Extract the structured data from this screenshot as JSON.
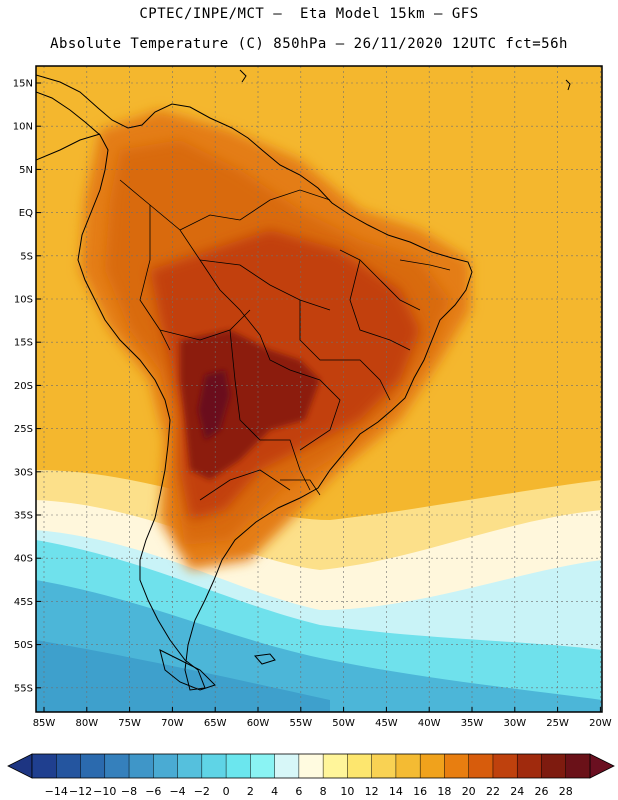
{
  "header": {
    "line1": "CPTEC/INPE/MCT –  Eta Model 15km – GFS",
    "line2": "Absolute Temperature (C) 850hPa – 26/11/2020 12UTC fct=56h"
  },
  "axes": {
    "lat_labels": [
      "15N",
      "10N",
      "5N",
      "EQ",
      "5S",
      "10S",
      "15S",
      "20S",
      "25S",
      "30S",
      "35S",
      "40S",
      "45S",
      "50S",
      "55S"
    ],
    "lon_labels": [
      "85W",
      "80W",
      "75W",
      "70W",
      "65W",
      "60W",
      "55W",
      "50W",
      "45W",
      "40W",
      "35W",
      "30W",
      "25W",
      "20W"
    ]
  },
  "colorbar": {
    "labels": [
      "-14",
      "-12",
      "-10",
      "-8",
      "-6",
      "-4",
      "-2",
      "0",
      "2",
      "4",
      "6",
      "8",
      "10",
      "12",
      "14",
      "16",
      "18",
      "20",
      "22",
      "24",
      "26",
      "28"
    ],
    "colors": [
      "#1f3f8f",
      "#24559f",
      "#2b6aae",
      "#3580bc",
      "#3f96c8",
      "#4aabd3",
      "#55c0dd",
      "#5fd4e6",
      "#6be6ee",
      "#8af3f3",
      "#d7f7f8",
      "#fffbe0",
      "#fff59a",
      "#fde66e",
      "#f9d253",
      "#f4bb33",
      "#f0a21c",
      "#e87e10",
      "#d75c0c",
      "#bf410d",
      "#a02a0d",
      "#7e1b0f",
      "#6a1118"
    ],
    "low_color": "#1d3582",
    "high_color": "#6a0f20"
  },
  "palette": {
    "ocean_warm": "#f4b72e",
    "ocean_north": "#f3b12a",
    "ocean_far": "#f6c54a",
    "land_hot": "#c2410d",
    "land_very_hot": "#8c1f0f",
    "land_peak": "#6b0f1f",
    "warm_orange": "#e47d12",
    "mid_orange": "#ee9a1e",
    "cool_yellow": "#fce08a",
    "pale": "#fff7dc",
    "cyan_light": "#c9f3f7",
    "cyan": "#6fe1ec",
    "blue_mid": "#4cb6d8",
    "blue": "#3ea0cc"
  }
}
